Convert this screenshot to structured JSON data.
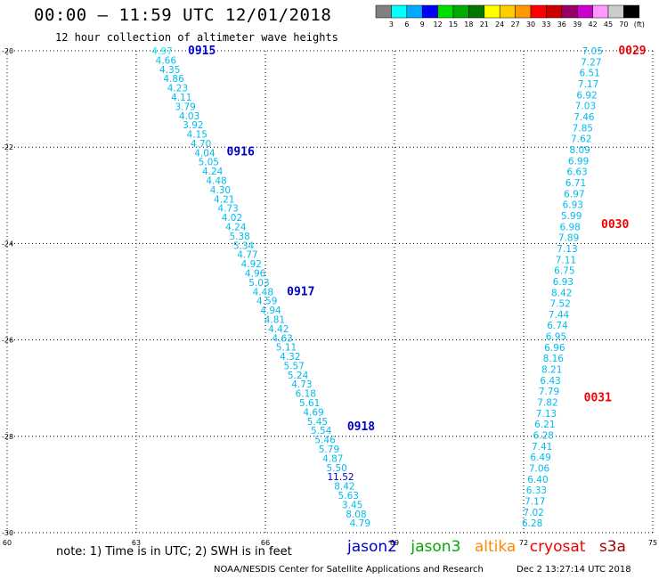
{
  "title": "00:00 – 11:59 UTC 12/01/2018",
  "subtitle": "12 hour collection of altimeter wave heights",
  "note": "note: 1) Time is in UTC; 2) SWH is in feet",
  "credit": "NOAA/NESDIS Center for Satellite Applications and Research",
  "timestamp": "Dec  2 13:27:14 UTC 2018",
  "missions": [
    {
      "name": "jason2",
      "color": "#0000cc"
    },
    {
      "name": "jason3",
      "color": "#00aa00"
    },
    {
      "name": "altika",
      "color": "#ff8800"
    },
    {
      "name": "cryosat",
      "color": "#ee0000"
    },
    {
      "name": "s3a",
      "color": "#aa0000"
    }
  ],
  "scale": {
    "labels": [
      "3",
      "6",
      "9",
      "12",
      "15",
      "18",
      "21",
      "24",
      "27",
      "30",
      "33",
      "36",
      "39",
      "42",
      "45",
      "70"
    ],
    "colors": [
      "#808080",
      "#00ffff",
      "#00aaff",
      "#0000ff",
      "#00dd00",
      "#00aa00",
      "#007700",
      "#ffff00",
      "#ffcc00",
      "#ff9900",
      "#ff0000",
      "#cc0000",
      "#990066",
      "#cc00cc",
      "#ff99ff",
      "#cccccc",
      "#000000"
    ],
    "unit": "(ft)"
  },
  "chart_data": {
    "type": "scatter",
    "xlim": [
      60,
      75
    ],
    "ylim": [
      -30,
      -20
    ],
    "xticks": [
      60,
      63,
      66,
      69,
      72,
      75
    ],
    "yticks": [
      -20,
      -22,
      -24,
      -26,
      -28,
      -30
    ],
    "grid": true,
    "tracks": [
      {
        "lon_start": 63.6,
        "lat_start": -20.0,
        "lon_end": 68.2,
        "lat_end": -29.8,
        "values": [
          "4.97",
          "4.66",
          "4.35",
          "4.86",
          "4.23",
          "4.11",
          "3.79",
          "4.03",
          "3.92",
          "4.15",
          "4.70",
          "4.04",
          "5.05",
          "4.24",
          "4.48",
          "4.30",
          "4.21",
          "4.73",
          "4.02",
          "4.24",
          "5.38",
          "5.34",
          "4.77",
          "4.92",
          "4.96",
          "5.03",
          "4.48",
          "4.59",
          "4.94",
          "4.81",
          "4.42",
          "4.63",
          "5.11",
          "4.32",
          "5.57",
          "5.24",
          "4.73",
          "6.18",
          "5.61",
          "4.69",
          "5.45",
          "5.54",
          "5.46",
          "5.79",
          "4.87",
          "5.50",
          "11.52",
          "8.42",
          "5.63",
          "3.45",
          "8.08",
          "4.79"
        ],
        "colors": [
          "#00eeee",
          "#00bbee",
          "#00bbee",
          "#00bbee",
          "#00bbee",
          "#00bbee",
          "#00bbee",
          "#00bbee",
          "#00bbee",
          "#00bbee",
          "#00bbee",
          "#00bbee",
          "#00bbee",
          "#00bbee",
          "#00bbee",
          "#00bbee",
          "#00bbee",
          "#00bbee",
          "#00bbee",
          "#00bbee",
          "#00bbee",
          "#00bbee",
          "#00bbee",
          "#00bbee",
          "#00bbee",
          "#00bbee",
          "#00bbee",
          "#00bbee",
          "#00bbee",
          "#00bbee",
          "#00bbee",
          "#00bbee",
          "#00bbee",
          "#00bbee",
          "#00bbee",
          "#00bbee",
          "#00bbee",
          "#00bbee",
          "#00bbee",
          "#00bbee",
          "#00bbee",
          "#00bbee",
          "#00bbee",
          "#00bbee",
          "#00bbee",
          "#00bbee",
          "#0000cc",
          "#00bbee",
          "#00bbee",
          "#00bbee",
          "#00bbee",
          "#00bbee"
        ]
      },
      {
        "lon_start": 73.6,
        "lat_start": -20.0,
        "lon_end": 72.2,
        "lat_end": -29.8,
        "values": [
          "7.05",
          "7.27",
          "6.51",
          "7.17",
          "6.92",
          "7.03",
          "7.46",
          "7.85",
          "7.62",
          "8.09",
          "6.99",
          "6.63",
          "6.71",
          "6.97",
          "6.93",
          "5.99",
          "6.98",
          "7.89",
          "7.13",
          "7.11",
          "6.75",
          "6.93",
          "8.42",
          "7.52",
          "7.44",
          "6.74",
          "6.95",
          "6.96",
          "8.16",
          "8.21",
          "6.43",
          "7.79",
          "7.82",
          "7.13",
          "6.21",
          "6.28",
          "7.41",
          "6.49",
          "7.06",
          "6.40",
          "6.33",
          "7.17",
          "7.02",
          "6.28"
        ],
        "colors": [
          "#00bbee",
          "#00bbee",
          "#00bbee",
          "#00bbee",
          "#00bbee",
          "#00bbee",
          "#00bbee",
          "#00bbee",
          "#00bbee",
          "#00bbee",
          "#00bbee",
          "#00bbee",
          "#00bbee",
          "#00bbee",
          "#00bbee",
          "#00bbee",
          "#00bbee",
          "#00bbee",
          "#00bbee",
          "#00bbee",
          "#00bbee",
          "#00bbee",
          "#00bbee",
          "#00bbee",
          "#00bbee",
          "#00bbee",
          "#00bbee",
          "#00bbee",
          "#00bbee",
          "#00bbee",
          "#00bbee",
          "#00bbee",
          "#00bbee",
          "#00bbee",
          "#00bbee",
          "#00bbee",
          "#00bbee",
          "#00bbee",
          "#00bbee",
          "#00bbee",
          "#00bbee",
          "#00bbee",
          "#00bbee",
          "#00bbee"
        ]
      }
    ],
    "pass_times": [
      {
        "text": "0915",
        "lon": 64.2,
        "lat": -20.0,
        "color": "#0000cc"
      },
      {
        "text": "0916",
        "lon": 65.1,
        "lat": -22.1,
        "color": "#0000cc"
      },
      {
        "text": "0917",
        "lon": 66.5,
        "lat": -25.0,
        "color": "#0000cc"
      },
      {
        "text": "0918",
        "lon": 67.9,
        "lat": -27.8,
        "color": "#0000cc"
      },
      {
        "text": "0029",
        "lon": 74.2,
        "lat": -20.0,
        "color": "#ee0000"
      },
      {
        "text": "0030",
        "lon": 73.8,
        "lat": -23.6,
        "color": "#ee0000"
      },
      {
        "text": "0031",
        "lon": 73.4,
        "lat": -27.2,
        "color": "#ee0000"
      }
    ]
  }
}
